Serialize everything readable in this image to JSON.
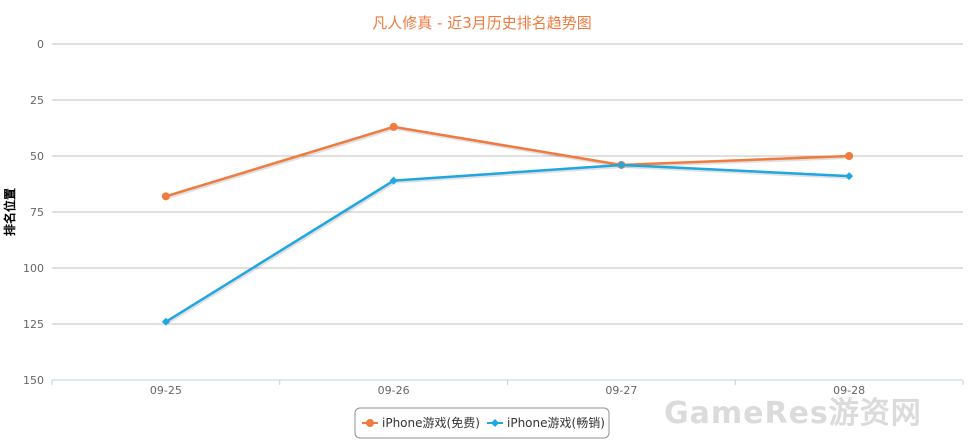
{
  "chart_data": {
    "type": "line",
    "title": "凡人修真 - 近3月历史排名趋势图",
    "ylabel": "排名位置",
    "xlabel": "",
    "categories": [
      "09-25",
      "09-26",
      "09-27",
      "09-28"
    ],
    "y_ticks": [
      "0",
      "25",
      "50",
      "75",
      "100",
      "125",
      "150"
    ],
    "ylim": [
      0,
      150
    ],
    "y_reversed": true,
    "grid": true,
    "legend_position": "bottom-center",
    "series": [
      {
        "name": "iPhone游戏(免费)",
        "values": [
          68,
          37,
          54,
          50
        ],
        "color": "#f07b3f",
        "marker": "circle"
      },
      {
        "name": "iPhone游戏(畅销)",
        "values": [
          124,
          61,
          54,
          59
        ],
        "color": "#1ea7e1",
        "marker": "diamond"
      }
    ],
    "title_color": "#f07b3f"
  },
  "watermark": "GameRes游资网"
}
